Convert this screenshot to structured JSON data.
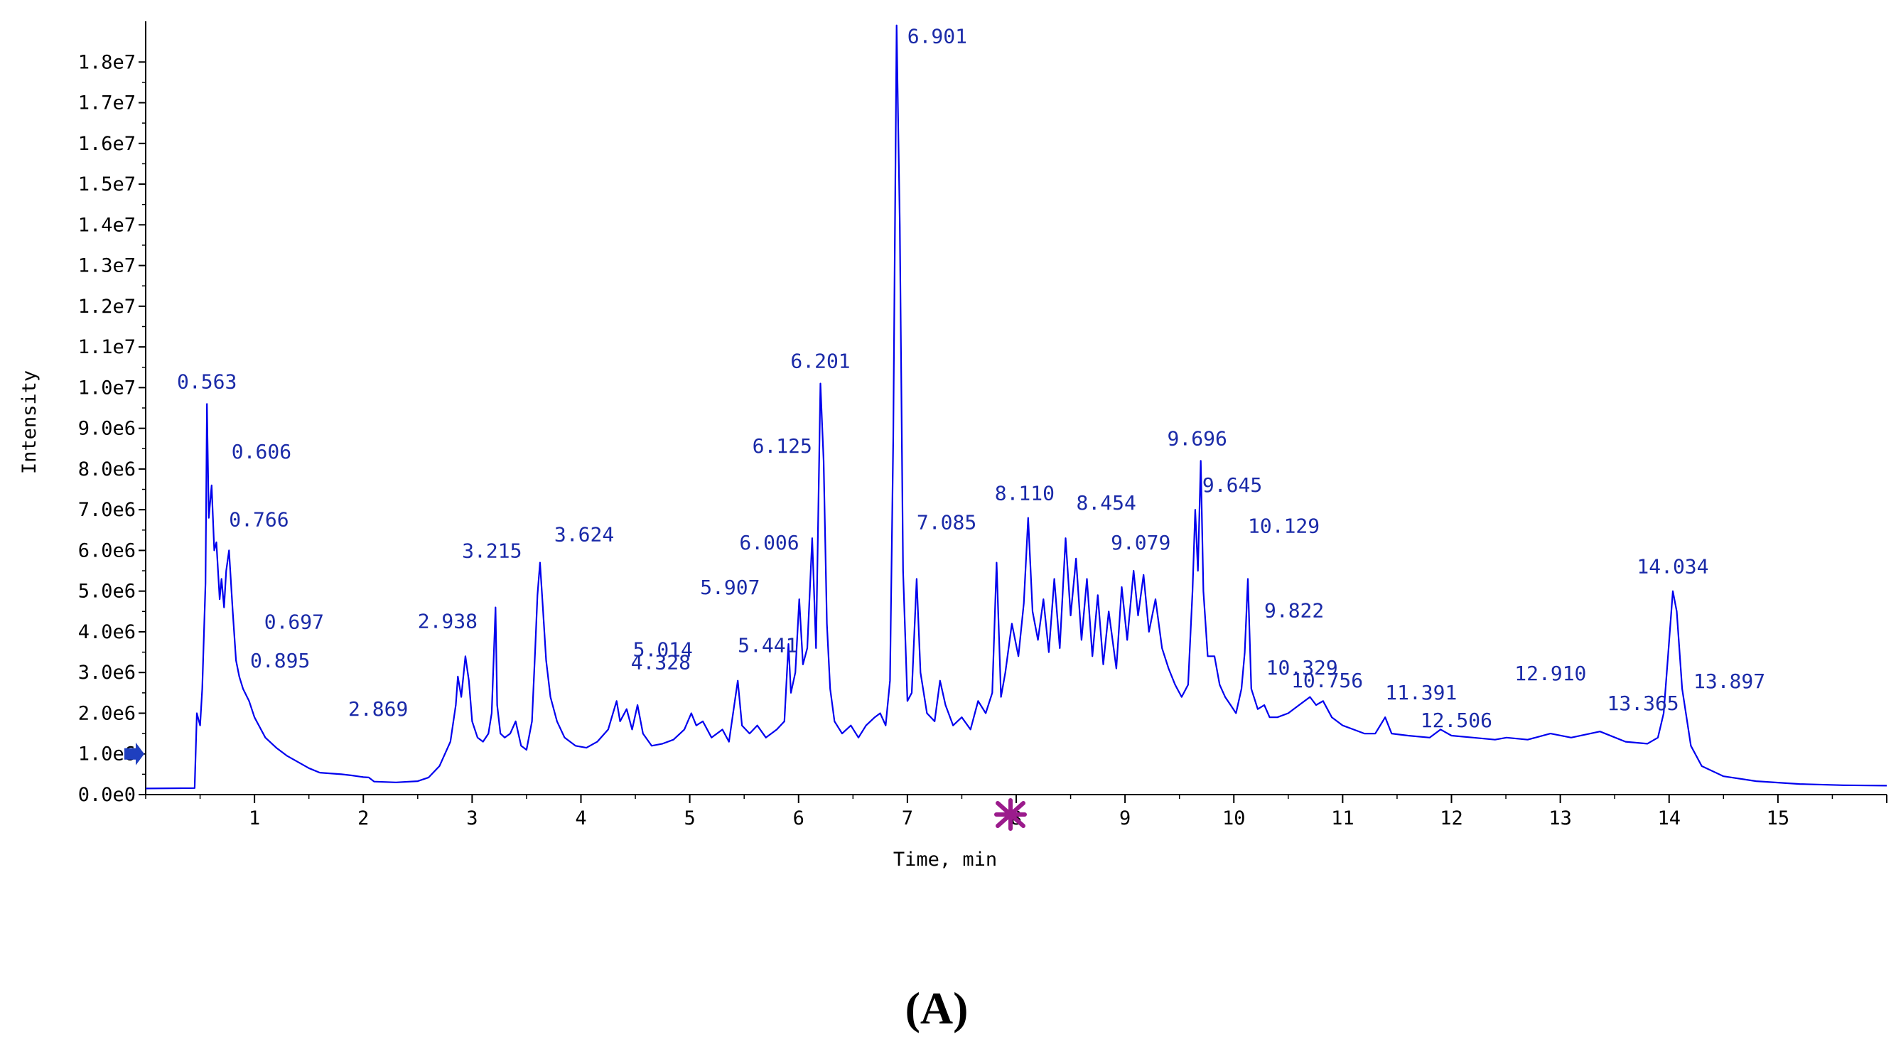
{
  "chart_data": {
    "type": "line",
    "xlabel": "Time, min",
    "ylabel": "Intensity",
    "xlim": [
      0,
      16
    ],
    "ylim": [
      0,
      19000000
    ],
    "x_ticks": [
      1,
      2,
      3,
      4,
      5,
      6,
      7,
      8,
      9,
      10,
      11,
      12,
      13,
      14,
      15
    ],
    "x_tick_labels": [
      "1",
      "2",
      "3",
      "4",
      "5",
      "6",
      "7",
      "8",
      "9",
      "10",
      "11",
      "12",
      "13",
      "14",
      "15"
    ],
    "y_ticks": [
      0,
      1000000,
      2000000,
      3000000,
      4000000,
      5000000,
      6000000,
      7000000,
      8000000,
      9000000,
      10000000,
      11000000,
      12000000,
      13000000,
      14000000,
      15000000,
      16000000,
      17000000,
      18000000
    ],
    "y_tick_labels": [
      "0.0e0",
      "1.0e6",
      "2.0e6",
      "3.0e6",
      "4.0e6",
      "5.0e6",
      "6.0e6",
      "7.0e6",
      "8.0e6",
      "9.0e6",
      "1.0e7",
      "1.1e7",
      "1.2e7",
      "1.3e7",
      "1.4e7",
      "1.5e7",
      "1.6e7",
      "1.7e7",
      "1.8e7"
    ],
    "grid": false,
    "line_color": "#0000ee",
    "peak_label_color": "#1a2aa8",
    "arrow_color": "#1f3fbf",
    "marker_color": "#9b1b8c",
    "panel_label": "(A)",
    "series": [
      {
        "values": [
          [
            0.0,
            150000
          ],
          [
            0.45,
            160000
          ],
          [
            0.47,
            2000000
          ],
          [
            0.5,
            1700000
          ],
          [
            0.52,
            2600000
          ],
          [
            0.55,
            5200000
          ],
          [
            0.563,
            9600000
          ],
          [
            0.58,
            6800000
          ],
          [
            0.606,
            7600000
          ],
          [
            0.63,
            6000000
          ],
          [
            0.65,
            6200000
          ],
          [
            0.68,
            4800000
          ],
          [
            0.697,
            5300000
          ],
          [
            0.72,
            4600000
          ],
          [
            0.74,
            5500000
          ],
          [
            0.766,
            6000000
          ],
          [
            0.8,
            4500000
          ],
          [
            0.83,
            3300000
          ],
          [
            0.86,
            2900000
          ],
          [
            0.895,
            2600000
          ],
          [
            0.95,
            2300000
          ],
          [
            1.0,
            1900000
          ],
          [
            1.1,
            1400000
          ],
          [
            1.2,
            1150000
          ],
          [
            1.3,
            950000
          ],
          [
            1.4,
            800000
          ],
          [
            1.5,
            650000
          ],
          [
            1.6,
            540000
          ],
          [
            1.8,
            500000
          ],
          [
            1.9,
            470000
          ],
          [
            2.0,
            430000
          ],
          [
            2.05,
            420000
          ],
          [
            2.1,
            320000
          ],
          [
            2.3,
            300000
          ],
          [
            2.5,
            330000
          ],
          [
            2.6,
            420000
          ],
          [
            2.7,
            700000
          ],
          [
            2.8,
            1300000
          ],
          [
            2.85,
            2200000
          ],
          [
            2.869,
            2900000
          ],
          [
            2.9,
            2400000
          ],
          [
            2.938,
            3400000
          ],
          [
            2.97,
            2800000
          ],
          [
            3.0,
            1800000
          ],
          [
            3.05,
            1400000
          ],
          [
            3.1,
            1300000
          ],
          [
            3.15,
            1500000
          ],
          [
            3.18,
            2000000
          ],
          [
            3.215,
            4600000
          ],
          [
            3.23,
            2200000
          ],
          [
            3.26,
            1500000
          ],
          [
            3.3,
            1400000
          ],
          [
            3.35,
            1500000
          ],
          [
            3.4,
            1800000
          ],
          [
            3.45,
            1200000
          ],
          [
            3.5,
            1100000
          ],
          [
            3.55,
            1800000
          ],
          [
            3.58,
            3600000
          ],
          [
            3.6,
            4900000
          ],
          [
            3.624,
            5700000
          ],
          [
            3.65,
            4600000
          ],
          [
            3.68,
            3300000
          ],
          [
            3.72,
            2400000
          ],
          [
            3.78,
            1800000
          ],
          [
            3.85,
            1400000
          ],
          [
            3.95,
            1200000
          ],
          [
            4.05,
            1150000
          ],
          [
            4.15,
            1300000
          ],
          [
            4.25,
            1600000
          ],
          [
            4.328,
            2300000
          ],
          [
            4.36,
            1800000
          ],
          [
            4.42,
            2100000
          ],
          [
            4.47,
            1600000
          ],
          [
            4.52,
            2200000
          ],
          [
            4.57,
            1500000
          ],
          [
            4.65,
            1200000
          ],
          [
            4.75,
            1250000
          ],
          [
            4.85,
            1350000
          ],
          [
            4.95,
            1600000
          ],
          [
            5.014,
            2000000
          ],
          [
            5.06,
            1700000
          ],
          [
            5.12,
            1800000
          ],
          [
            5.2,
            1400000
          ],
          [
            5.3,
            1600000
          ],
          [
            5.36,
            1300000
          ],
          [
            5.441,
            2800000
          ],
          [
            5.48,
            1700000
          ],
          [
            5.55,
            1500000
          ],
          [
            5.62,
            1700000
          ],
          [
            5.7,
            1400000
          ],
          [
            5.8,
            1600000
          ],
          [
            5.87,
            1800000
          ],
          [
            5.907,
            3700000
          ],
          [
            5.93,
            2500000
          ],
          [
            5.97,
            3000000
          ],
          [
            6.006,
            4800000
          ],
          [
            6.04,
            3200000
          ],
          [
            6.08,
            3600000
          ],
          [
            6.125,
            6300000
          ],
          [
            6.16,
            3600000
          ],
          [
            6.201,
            10100000
          ],
          [
            6.23,
            8200000
          ],
          [
            6.26,
            4200000
          ],
          [
            6.29,
            2600000
          ],
          [
            6.33,
            1800000
          ],
          [
            6.4,
            1500000
          ],
          [
            6.48,
            1700000
          ],
          [
            6.55,
            1400000
          ],
          [
            6.62,
            1700000
          ],
          [
            6.7,
            1900000
          ],
          [
            6.75,
            2000000
          ],
          [
            6.8,
            1700000
          ],
          [
            6.84,
            2800000
          ],
          [
            6.87,
            8800000
          ],
          [
            6.901,
            18900000
          ],
          [
            6.93,
            14000000
          ],
          [
            6.96,
            5500000
          ],
          [
            7.0,
            2300000
          ],
          [
            7.04,
            2500000
          ],
          [
            7.085,
            5300000
          ],
          [
            7.12,
            3000000
          ],
          [
            7.18,
            2000000
          ],
          [
            7.25,
            1800000
          ],
          [
            7.3,
            2800000
          ],
          [
            7.35,
            2200000
          ],
          [
            7.42,
            1700000
          ],
          [
            7.5,
            1900000
          ],
          [
            7.58,
            1600000
          ],
          [
            7.65,
            2300000
          ],
          [
            7.72,
            2000000
          ],
          [
            7.78,
            2500000
          ],
          [
            7.82,
            5700000
          ],
          [
            7.86,
            2400000
          ],
          [
            7.9,
            3000000
          ],
          [
            7.96,
            4200000
          ],
          [
            8.02,
            3400000
          ],
          [
            8.07,
            4700000
          ],
          [
            8.11,
            6800000
          ],
          [
            8.15,
            4500000
          ],
          [
            8.2,
            3800000
          ],
          [
            8.25,
            4800000
          ],
          [
            8.3,
            3500000
          ],
          [
            8.35,
            5300000
          ],
          [
            8.4,
            3600000
          ],
          [
            8.454,
            6300000
          ],
          [
            8.5,
            4400000
          ],
          [
            8.55,
            5800000
          ],
          [
            8.6,
            3800000
          ],
          [
            8.65,
            5300000
          ],
          [
            8.7,
            3400000
          ],
          [
            8.75,
            4900000
          ],
          [
            8.8,
            3200000
          ],
          [
            8.85,
            4500000
          ],
          [
            8.92,
            3100000
          ],
          [
            8.97,
            5100000
          ],
          [
            9.02,
            3800000
          ],
          [
            9.079,
            5500000
          ],
          [
            9.12,
            4400000
          ],
          [
            9.17,
            5400000
          ],
          [
            9.22,
            4000000
          ],
          [
            9.28,
            4800000
          ],
          [
            9.34,
            3600000
          ],
          [
            9.4,
            3100000
          ],
          [
            9.46,
            2700000
          ],
          [
            9.52,
            2400000
          ],
          [
            9.58,
            2700000
          ],
          [
            9.62,
            5000000
          ],
          [
            9.645,
            7000000
          ],
          [
            9.67,
            5500000
          ],
          [
            9.696,
            8200000
          ],
          [
            9.72,
            5000000
          ],
          [
            9.76,
            3400000
          ],
          [
            9.822,
            3400000
          ],
          [
            9.87,
            2700000
          ],
          [
            9.92,
            2400000
          ],
          [
            9.97,
            2200000
          ],
          [
            10.02,
            2000000
          ],
          [
            10.07,
            2600000
          ],
          [
            10.1,
            3500000
          ],
          [
            10.129,
            5300000
          ],
          [
            10.16,
            2600000
          ],
          [
            10.22,
            2100000
          ],
          [
            10.28,
            2200000
          ],
          [
            10.329,
            1900000
          ],
          [
            10.4,
            1900000
          ],
          [
            10.5,
            2000000
          ],
          [
            10.6,
            2200000
          ],
          [
            10.7,
            2400000
          ],
          [
            10.756,
            2200000
          ],
          [
            10.82,
            2300000
          ],
          [
            10.9,
            1900000
          ],
          [
            11.0,
            1700000
          ],
          [
            11.1,
            1600000
          ],
          [
            11.2,
            1500000
          ],
          [
            11.3,
            1500000
          ],
          [
            11.391,
            1900000
          ],
          [
            11.45,
            1500000
          ],
          [
            11.6,
            1450000
          ],
          [
            11.8,
            1400000
          ],
          [
            11.9,
            1600000
          ],
          [
            12.0,
            1450000
          ],
          [
            12.2,
            1400000
          ],
          [
            12.4,
            1350000
          ],
          [
            12.506,
            1400000
          ],
          [
            12.7,
            1350000
          ],
          [
            12.91,
            1500000
          ],
          [
            13.1,
            1400000
          ],
          [
            13.365,
            1550000
          ],
          [
            13.6,
            1300000
          ],
          [
            13.8,
            1250000
          ],
          [
            13.897,
            1400000
          ],
          [
            13.95,
            2000000
          ],
          [
            13.99,
            3400000
          ],
          [
            14.034,
            5000000
          ],
          [
            14.07,
            4500000
          ],
          [
            14.12,
            2600000
          ],
          [
            14.2,
            1200000
          ],
          [
            14.3,
            700000
          ],
          [
            14.5,
            450000
          ],
          [
            14.8,
            330000
          ],
          [
            15.2,
            260000
          ],
          [
            15.6,
            230000
          ],
          [
            16.0,
            220000
          ]
        ]
      }
    ],
    "annotations": [
      {
        "text": "0.563",
        "x": 0.563,
        "y": 9600000
      },
      {
        "text": "0.606",
        "x": 0.606,
        "y": 7600000
      },
      {
        "text": "0.766",
        "x": 0.766,
        "y": 6000000
      },
      {
        "text": "0.697",
        "x": 0.697,
        "y": 5300000
      },
      {
        "text": "0.895",
        "x": 0.895,
        "y": 2600000
      },
      {
        "text": "2.869",
        "x": 2.869,
        "y": 2900000
      },
      {
        "text": "2.938",
        "x": 2.938,
        "y": 3400000
      },
      {
        "text": "3.215",
        "x": 3.215,
        "y": 4600000
      },
      {
        "text": "3.624",
        "x": 3.624,
        "y": 5700000
      },
      {
        "text": "4.328",
        "x": 4.328,
        "y": 2300000
      },
      {
        "text": "5.014",
        "x": 5.014,
        "y": 2000000
      },
      {
        "text": "5.441",
        "x": 5.441,
        "y": 2800000
      },
      {
        "text": "5.907",
        "x": 5.907,
        "y": 3700000
      },
      {
        "text": "6.006",
        "x": 6.006,
        "y": 4800000
      },
      {
        "text": "6.125",
        "x": 6.125,
        "y": 6300000
      },
      {
        "text": "6.201",
        "x": 6.201,
        "y": 10100000
      },
      {
        "text": "6.901",
        "x": 6.901,
        "y": 18900000
      },
      {
        "text": "7.085",
        "x": 7.085,
        "y": 5300000
      },
      {
        "text": "8.110",
        "x": 8.11,
        "y": 6800000
      },
      {
        "text": "8.454",
        "x": 8.454,
        "y": 6300000
      },
      {
        "text": "9.079",
        "x": 9.079,
        "y": 5500000
      },
      {
        "text": "9.696",
        "x": 9.696,
        "y": 8200000
      },
      {
        "text": "9.645",
        "x": 9.645,
        "y": 7000000
      },
      {
        "text": "10.129",
        "x": 10.129,
        "y": 5300000
      },
      {
        "text": "9.822",
        "x": 9.822,
        "y": 3400000
      },
      {
        "text": "10.329",
        "x": 10.329,
        "y": 1900000
      },
      {
        "text": "10.756",
        "x": 10.756,
        "y": 2200000
      },
      {
        "text": "11.391",
        "x": 11.391,
        "y": 1900000
      },
      {
        "text": "12.910",
        "x": 12.91,
        "y": 1500000
      },
      {
        "text": "12.506",
        "x": 12.506,
        "y": 1400000
      },
      {
        "text": "13.365",
        "x": 13.365,
        "y": 1550000
      },
      {
        "text": "14.034",
        "x": 14.034,
        "y": 5000000
      },
      {
        "text": "13.897",
        "x": 13.897,
        "y": 1400000
      }
    ]
  }
}
